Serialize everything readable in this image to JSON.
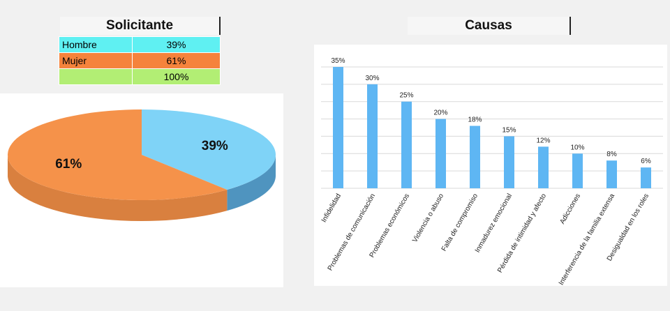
{
  "solicitante": {
    "title": "Solicitante",
    "rows": [
      {
        "label": "Hombre",
        "value": "39%",
        "color": "#5ff0f2"
      },
      {
        "label": "Mujer",
        "value": "61%",
        "color": "#f5833c"
      },
      {
        "label": "",
        "value": "100%",
        "color": "#b2ee74"
      }
    ]
  },
  "causas": {
    "title": "Causas"
  },
  "chart_data": [
    {
      "type": "pie",
      "labels": [
        "Hombre",
        "Mujer"
      ],
      "values": [
        39,
        61
      ],
      "data_labels": [
        "39%",
        "61%"
      ],
      "colors": [
        "#7fd3f7",
        "#f5924a"
      ]
    },
    {
      "type": "bar",
      "categories": [
        "Infidelidad",
        "Problemas de comunicación",
        "Problemas económicos",
        "Violencia o abuso",
        "Falta de compromiso",
        "Inmadurez emocional",
        "Pérdida de intimidad y afecto",
        "Adicciones",
        "Interferencia de la familia extensa",
        "Desigualdad en los roles"
      ],
      "values": [
        35,
        30,
        25,
        20,
        18,
        15,
        12,
        10,
        8,
        6
      ],
      "data_labels": [
        "35%",
        "30%",
        "25%",
        "20%",
        "18%",
        "15%",
        "12%",
        "10%",
        "8%",
        "6%"
      ],
      "ylim": [
        0,
        35
      ],
      "grid": true,
      "color": "#5eb6f3"
    }
  ]
}
